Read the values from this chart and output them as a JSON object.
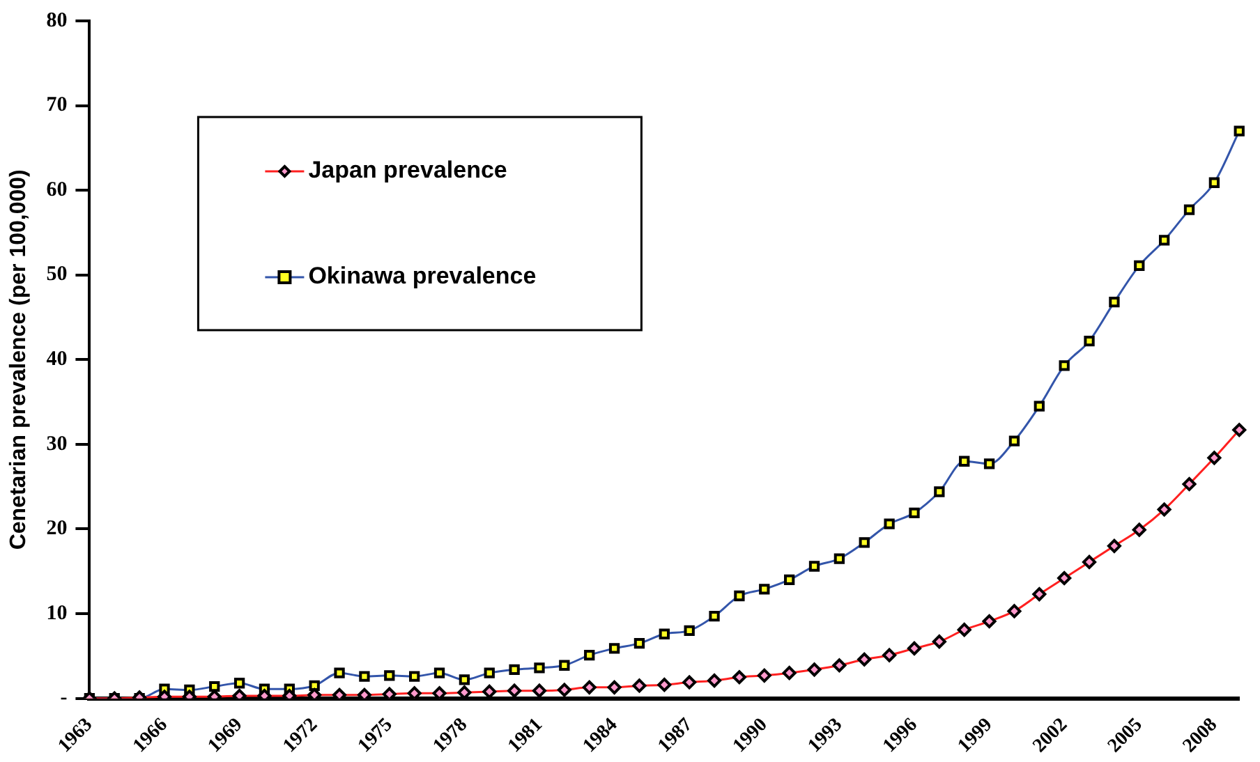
{
  "chart_data": {
    "type": "line",
    "ylabel": "Cenetarian prevalence (per 100,000)",
    "categories": [
      "1963",
      null,
      null,
      "1966",
      null,
      null,
      "1969",
      null,
      null,
      "1972",
      null,
      null,
      "1975",
      null,
      null,
      "1978",
      null,
      null,
      "1981",
      null,
      null,
      "1984",
      null,
      null,
      "1987",
      null,
      null,
      "1990",
      null,
      null,
      "1993",
      null,
      null,
      "1996",
      null,
      null,
      "1999",
      null,
      null,
      "2002",
      null,
      null,
      "2005",
      null,
      null,
      "2008",
      null
    ],
    "series": [
      {
        "name": "Japan prevalence",
        "color": "#ff2020",
        "marker": "diamond",
        "values": [
          0.0,
          0.0,
          0.1,
          0.2,
          0.2,
          0.2,
          0.3,
          0.3,
          0.3,
          0.4,
          0.4,
          0.4,
          0.5,
          0.6,
          0.6,
          0.7,
          0.8,
          0.9,
          0.9,
          1.0,
          1.3,
          1.3,
          1.5,
          1.6,
          1.9,
          2.1,
          2.5,
          2.7,
          3.0,
          3.4,
          3.9,
          4.6,
          5.1,
          5.9,
          6.7,
          8.1,
          9.1,
          10.3,
          12.3,
          14.2,
          16.1,
          18.0,
          19.9,
          22.3,
          25.3,
          28.4,
          31.7
        ]
      },
      {
        "name": "Okinawa prevalence",
        "color": "#3355aa",
        "marker": "square",
        "values": [
          0.0,
          0.0,
          0.0,
          1.1,
          1.0,
          1.4,
          1.8,
          1.1,
          1.1,
          1.5,
          3.0,
          2.6,
          2.7,
          2.6,
          3.0,
          2.2,
          3.0,
          3.4,
          3.6,
          3.9,
          5.1,
          5.9,
          6.5,
          7.6,
          8.0,
          9.7,
          12.1,
          12.9,
          14.0,
          15.6,
          16.5,
          18.4,
          20.6,
          21.9,
          24.4,
          28.0,
          27.7,
          30.4,
          34.5,
          39.3,
          42.2,
          46.8,
          51.1,
          54.1,
          57.7,
          60.9,
          67.0
        ]
      }
    ],
    "ylim": [
      0,
      80
    ],
    "yticks": [
      {
        "value": 0,
        "label": "-"
      },
      10,
      20,
      30,
      40,
      50,
      60,
      70,
      80
    ],
    "grid": false,
    "legend": "top left"
  }
}
